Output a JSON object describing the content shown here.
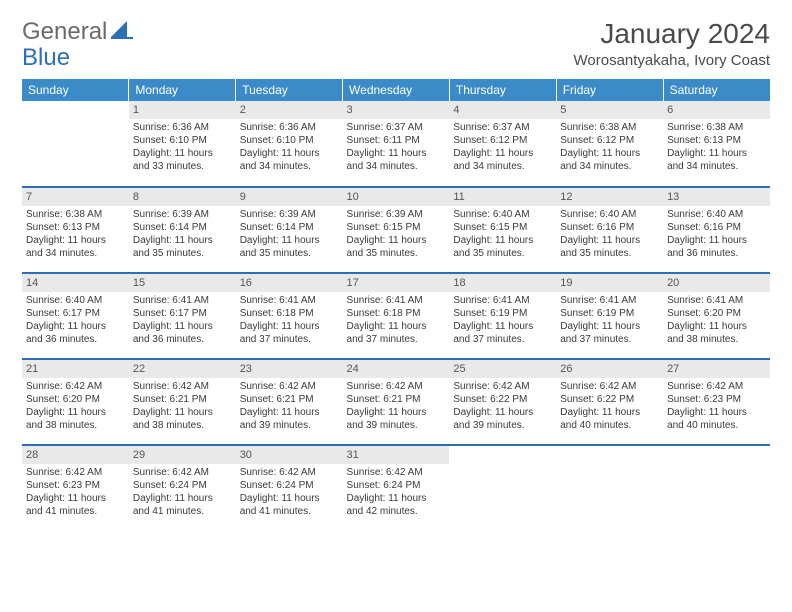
{
  "logo": {
    "text1": "General",
    "text2": "Blue"
  },
  "title": "January 2024",
  "location": "Worosantyakaha, Ivory Coast",
  "colors": {
    "header_bg": "#3b8bc9",
    "header_fg": "#ffffff",
    "daynum_bg": "#e9e9e9",
    "rule": "#2c6fb5",
    "logo_gray": "#6a6a6a",
    "logo_blue": "#2c6fb5"
  },
  "dayHeaders": [
    "Sunday",
    "Monday",
    "Tuesday",
    "Wednesday",
    "Thursday",
    "Friday",
    "Saturday"
  ],
  "weeks": [
    [
      null,
      {
        "n": "1",
        "sr": "6:36 AM",
        "ss": "6:10 PM",
        "dl": "11 hours and 33 minutes."
      },
      {
        "n": "2",
        "sr": "6:36 AM",
        "ss": "6:10 PM",
        "dl": "11 hours and 34 minutes."
      },
      {
        "n": "3",
        "sr": "6:37 AM",
        "ss": "6:11 PM",
        "dl": "11 hours and 34 minutes."
      },
      {
        "n": "4",
        "sr": "6:37 AM",
        "ss": "6:12 PM",
        "dl": "11 hours and 34 minutes."
      },
      {
        "n": "5",
        "sr": "6:38 AM",
        "ss": "6:12 PM",
        "dl": "11 hours and 34 minutes."
      },
      {
        "n": "6",
        "sr": "6:38 AM",
        "ss": "6:13 PM",
        "dl": "11 hours and 34 minutes."
      }
    ],
    [
      {
        "n": "7",
        "sr": "6:38 AM",
        "ss": "6:13 PM",
        "dl": "11 hours and 34 minutes."
      },
      {
        "n": "8",
        "sr": "6:39 AM",
        "ss": "6:14 PM",
        "dl": "11 hours and 35 minutes."
      },
      {
        "n": "9",
        "sr": "6:39 AM",
        "ss": "6:14 PM",
        "dl": "11 hours and 35 minutes."
      },
      {
        "n": "10",
        "sr": "6:39 AM",
        "ss": "6:15 PM",
        "dl": "11 hours and 35 minutes."
      },
      {
        "n": "11",
        "sr": "6:40 AM",
        "ss": "6:15 PM",
        "dl": "11 hours and 35 minutes."
      },
      {
        "n": "12",
        "sr": "6:40 AM",
        "ss": "6:16 PM",
        "dl": "11 hours and 35 minutes."
      },
      {
        "n": "13",
        "sr": "6:40 AM",
        "ss": "6:16 PM",
        "dl": "11 hours and 36 minutes."
      }
    ],
    [
      {
        "n": "14",
        "sr": "6:40 AM",
        "ss": "6:17 PM",
        "dl": "11 hours and 36 minutes."
      },
      {
        "n": "15",
        "sr": "6:41 AM",
        "ss": "6:17 PM",
        "dl": "11 hours and 36 minutes."
      },
      {
        "n": "16",
        "sr": "6:41 AM",
        "ss": "6:18 PM",
        "dl": "11 hours and 37 minutes."
      },
      {
        "n": "17",
        "sr": "6:41 AM",
        "ss": "6:18 PM",
        "dl": "11 hours and 37 minutes."
      },
      {
        "n": "18",
        "sr": "6:41 AM",
        "ss": "6:19 PM",
        "dl": "11 hours and 37 minutes."
      },
      {
        "n": "19",
        "sr": "6:41 AM",
        "ss": "6:19 PM",
        "dl": "11 hours and 37 minutes."
      },
      {
        "n": "20",
        "sr": "6:41 AM",
        "ss": "6:20 PM",
        "dl": "11 hours and 38 minutes."
      }
    ],
    [
      {
        "n": "21",
        "sr": "6:42 AM",
        "ss": "6:20 PM",
        "dl": "11 hours and 38 minutes."
      },
      {
        "n": "22",
        "sr": "6:42 AM",
        "ss": "6:21 PM",
        "dl": "11 hours and 38 minutes."
      },
      {
        "n": "23",
        "sr": "6:42 AM",
        "ss": "6:21 PM",
        "dl": "11 hours and 39 minutes."
      },
      {
        "n": "24",
        "sr": "6:42 AM",
        "ss": "6:21 PM",
        "dl": "11 hours and 39 minutes."
      },
      {
        "n": "25",
        "sr": "6:42 AM",
        "ss": "6:22 PM",
        "dl": "11 hours and 39 minutes."
      },
      {
        "n": "26",
        "sr": "6:42 AM",
        "ss": "6:22 PM",
        "dl": "11 hours and 40 minutes."
      },
      {
        "n": "27",
        "sr": "6:42 AM",
        "ss": "6:23 PM",
        "dl": "11 hours and 40 minutes."
      }
    ],
    [
      {
        "n": "28",
        "sr": "6:42 AM",
        "ss": "6:23 PM",
        "dl": "11 hours and 41 minutes."
      },
      {
        "n": "29",
        "sr": "6:42 AM",
        "ss": "6:24 PM",
        "dl": "11 hours and 41 minutes."
      },
      {
        "n": "30",
        "sr": "6:42 AM",
        "ss": "6:24 PM",
        "dl": "11 hours and 41 minutes."
      },
      {
        "n": "31",
        "sr": "6:42 AM",
        "ss": "6:24 PM",
        "dl": "11 hours and 42 minutes."
      },
      null,
      null,
      null
    ]
  ],
  "labels": {
    "sunrise": "Sunrise:",
    "sunset": "Sunset:",
    "daylight": "Daylight:"
  }
}
